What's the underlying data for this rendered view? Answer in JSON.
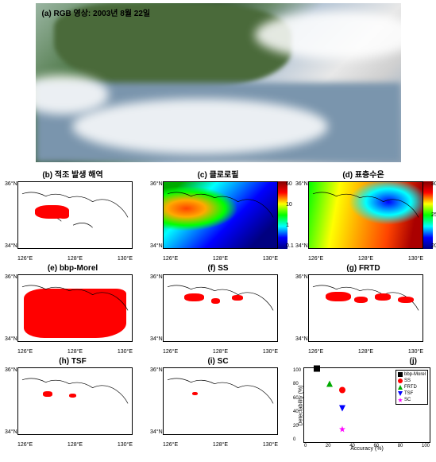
{
  "rgb": {
    "label": "(a) RGB 영상: 2003년 8월 22일"
  },
  "panels": {
    "b": {
      "label": "(b) 적조 발생 해역"
    },
    "c": {
      "label": "(c) 클로로필"
    },
    "d": {
      "label": "(d) 표층수온"
    },
    "e": {
      "label": "(e) bbp-Morel"
    },
    "f": {
      "label": "(f) SS"
    },
    "g": {
      "label": "(g) FRTD"
    },
    "h": {
      "label": "(h) TSF"
    },
    "i": {
      "label": "(i) SC"
    },
    "j": {
      "label": "(j)"
    }
  },
  "map_axes": {
    "y_ticks": [
      "36°N",
      "34°N"
    ],
    "x_ticks": [
      "126°E",
      "128°E",
      "130°E"
    ]
  },
  "colorbar_chl": {
    "ticks": [
      "60",
      "10",
      "1",
      "0.1"
    ]
  },
  "colorbar_sst": {
    "ticks": [
      "30",
      "25",
      "20"
    ]
  },
  "scatter": {
    "xlabel": "Accuracy (%)",
    "ylabel": "Detectability (%)",
    "xlim": [
      0,
      100
    ],
    "ylim": [
      0,
      100
    ],
    "x_ticks": [
      "0",
      "20",
      "40",
      "60",
      "80",
      "100"
    ],
    "y_ticks": [
      "0",
      "20",
      "40",
      "60",
      "80",
      "100"
    ],
    "legend": [
      {
        "name": "bbp-Morel",
        "color": "#000000",
        "shape": "square"
      },
      {
        "name": "SS",
        "color": "#ff0000",
        "shape": "circle"
      },
      {
        "name": "FRTD",
        "color": "#00aa00",
        "shape": "triangle-up"
      },
      {
        "name": "TSF",
        "color": "#0000ff",
        "shape": "triangle-down"
      },
      {
        "name": "SC",
        "color": "#ff00ff",
        "shape": "star"
      }
    ],
    "points": [
      {
        "series": "bbp-Morel",
        "x": 10,
        "y": 98,
        "color": "#000000",
        "shape": "square"
      },
      {
        "series": "SS",
        "x": 30,
        "y": 70,
        "color": "#ff0000",
        "shape": "circle"
      },
      {
        "series": "FRTD",
        "x": 20,
        "y": 78,
        "color": "#00aa00",
        "shape": "triangle-up"
      },
      {
        "series": "TSF",
        "x": 30,
        "y": 45,
        "color": "#0000ff",
        "shape": "triangle-down"
      },
      {
        "series": "SC",
        "x": 30,
        "y": 18,
        "color": "#ff00ff",
        "shape": "star"
      }
    ]
  },
  "colors": {
    "red_detect": "#ff0000",
    "coast": "#000000",
    "background": "#ffffff"
  }
}
